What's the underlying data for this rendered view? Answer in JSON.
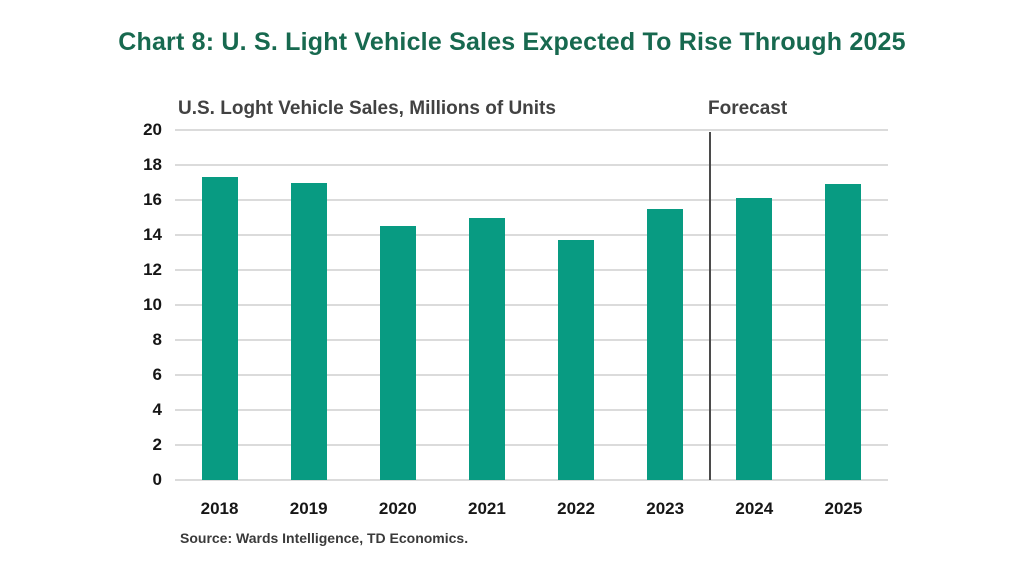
{
  "page": {
    "title": "Chart 8: U. S. Light Vehicle Sales Expected To Rise Through 2025"
  },
  "colors": {
    "title_text": "#17694f",
    "bar_fill": "#089b82",
    "gridline": "#dbdbdb",
    "divider_line": "#4b4b4b",
    "subtitle_text": "#424242",
    "axis_text": "#161616",
    "source_text": "#3a3a3a"
  },
  "chart_data": {
    "type": "bar",
    "title": "U.S. Loght Vehicle Sales, Millions of Units",
    "forecast_label": "Forecast",
    "categories": [
      "2018",
      "2019",
      "2020",
      "2021",
      "2022",
      "2023",
      "2024",
      "2025"
    ],
    "values": [
      17.3,
      17.0,
      14.5,
      15.0,
      13.7,
      15.5,
      16.1,
      16.9
    ],
    "forecast_from_index": 6,
    "ylim": [
      0,
      20
    ],
    "yticks": [
      0,
      2,
      4,
      6,
      8,
      10,
      12,
      14,
      16,
      18,
      20
    ],
    "grid": true,
    "legend": "none",
    "source": "Source: Wards Intelligence, TD Economics."
  }
}
